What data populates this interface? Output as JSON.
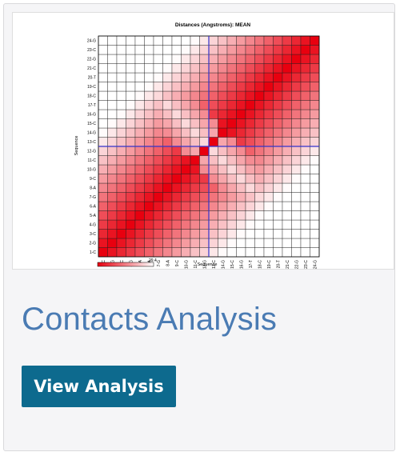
{
  "card": {
    "title": "Contacts Analysis",
    "button_label": "View Analysis",
    "accent_color": "#0d6a8e",
    "title_color": "#4a7bb3"
  },
  "chart_data": {
    "type": "heatmap",
    "title": "Distances (Angstroms):  MEAN",
    "xlabel": "Sequence",
    "ylabel": "Sequence",
    "categories": [
      "1-C",
      "2-G",
      "3-C",
      "4-G",
      "5-A",
      "6-A",
      "7-G",
      "8-A",
      "9-C",
      "10-G",
      "11-C",
      "12-G",
      "13-C",
      "14-G",
      "15-C",
      "16-G",
      "17-T",
      "18-C",
      "19-C",
      "20-T",
      "21-C",
      "22-G",
      "23-C",
      "24-G"
    ],
    "colorbar": {
      "min_label": "",
      "max_label": "29.4",
      "min": 0,
      "max": 29.4,
      "low_color": "#e8000f",
      "high_color": "#ffffff"
    },
    "crosshair": {
      "x": "12-G",
      "y": "12-G",
      "color": "#3333cc"
    },
    "value_model": "distance grows with separation |i-j| along the diagonal and decreases again toward the anti-diagonal corners",
    "grid": true
  }
}
